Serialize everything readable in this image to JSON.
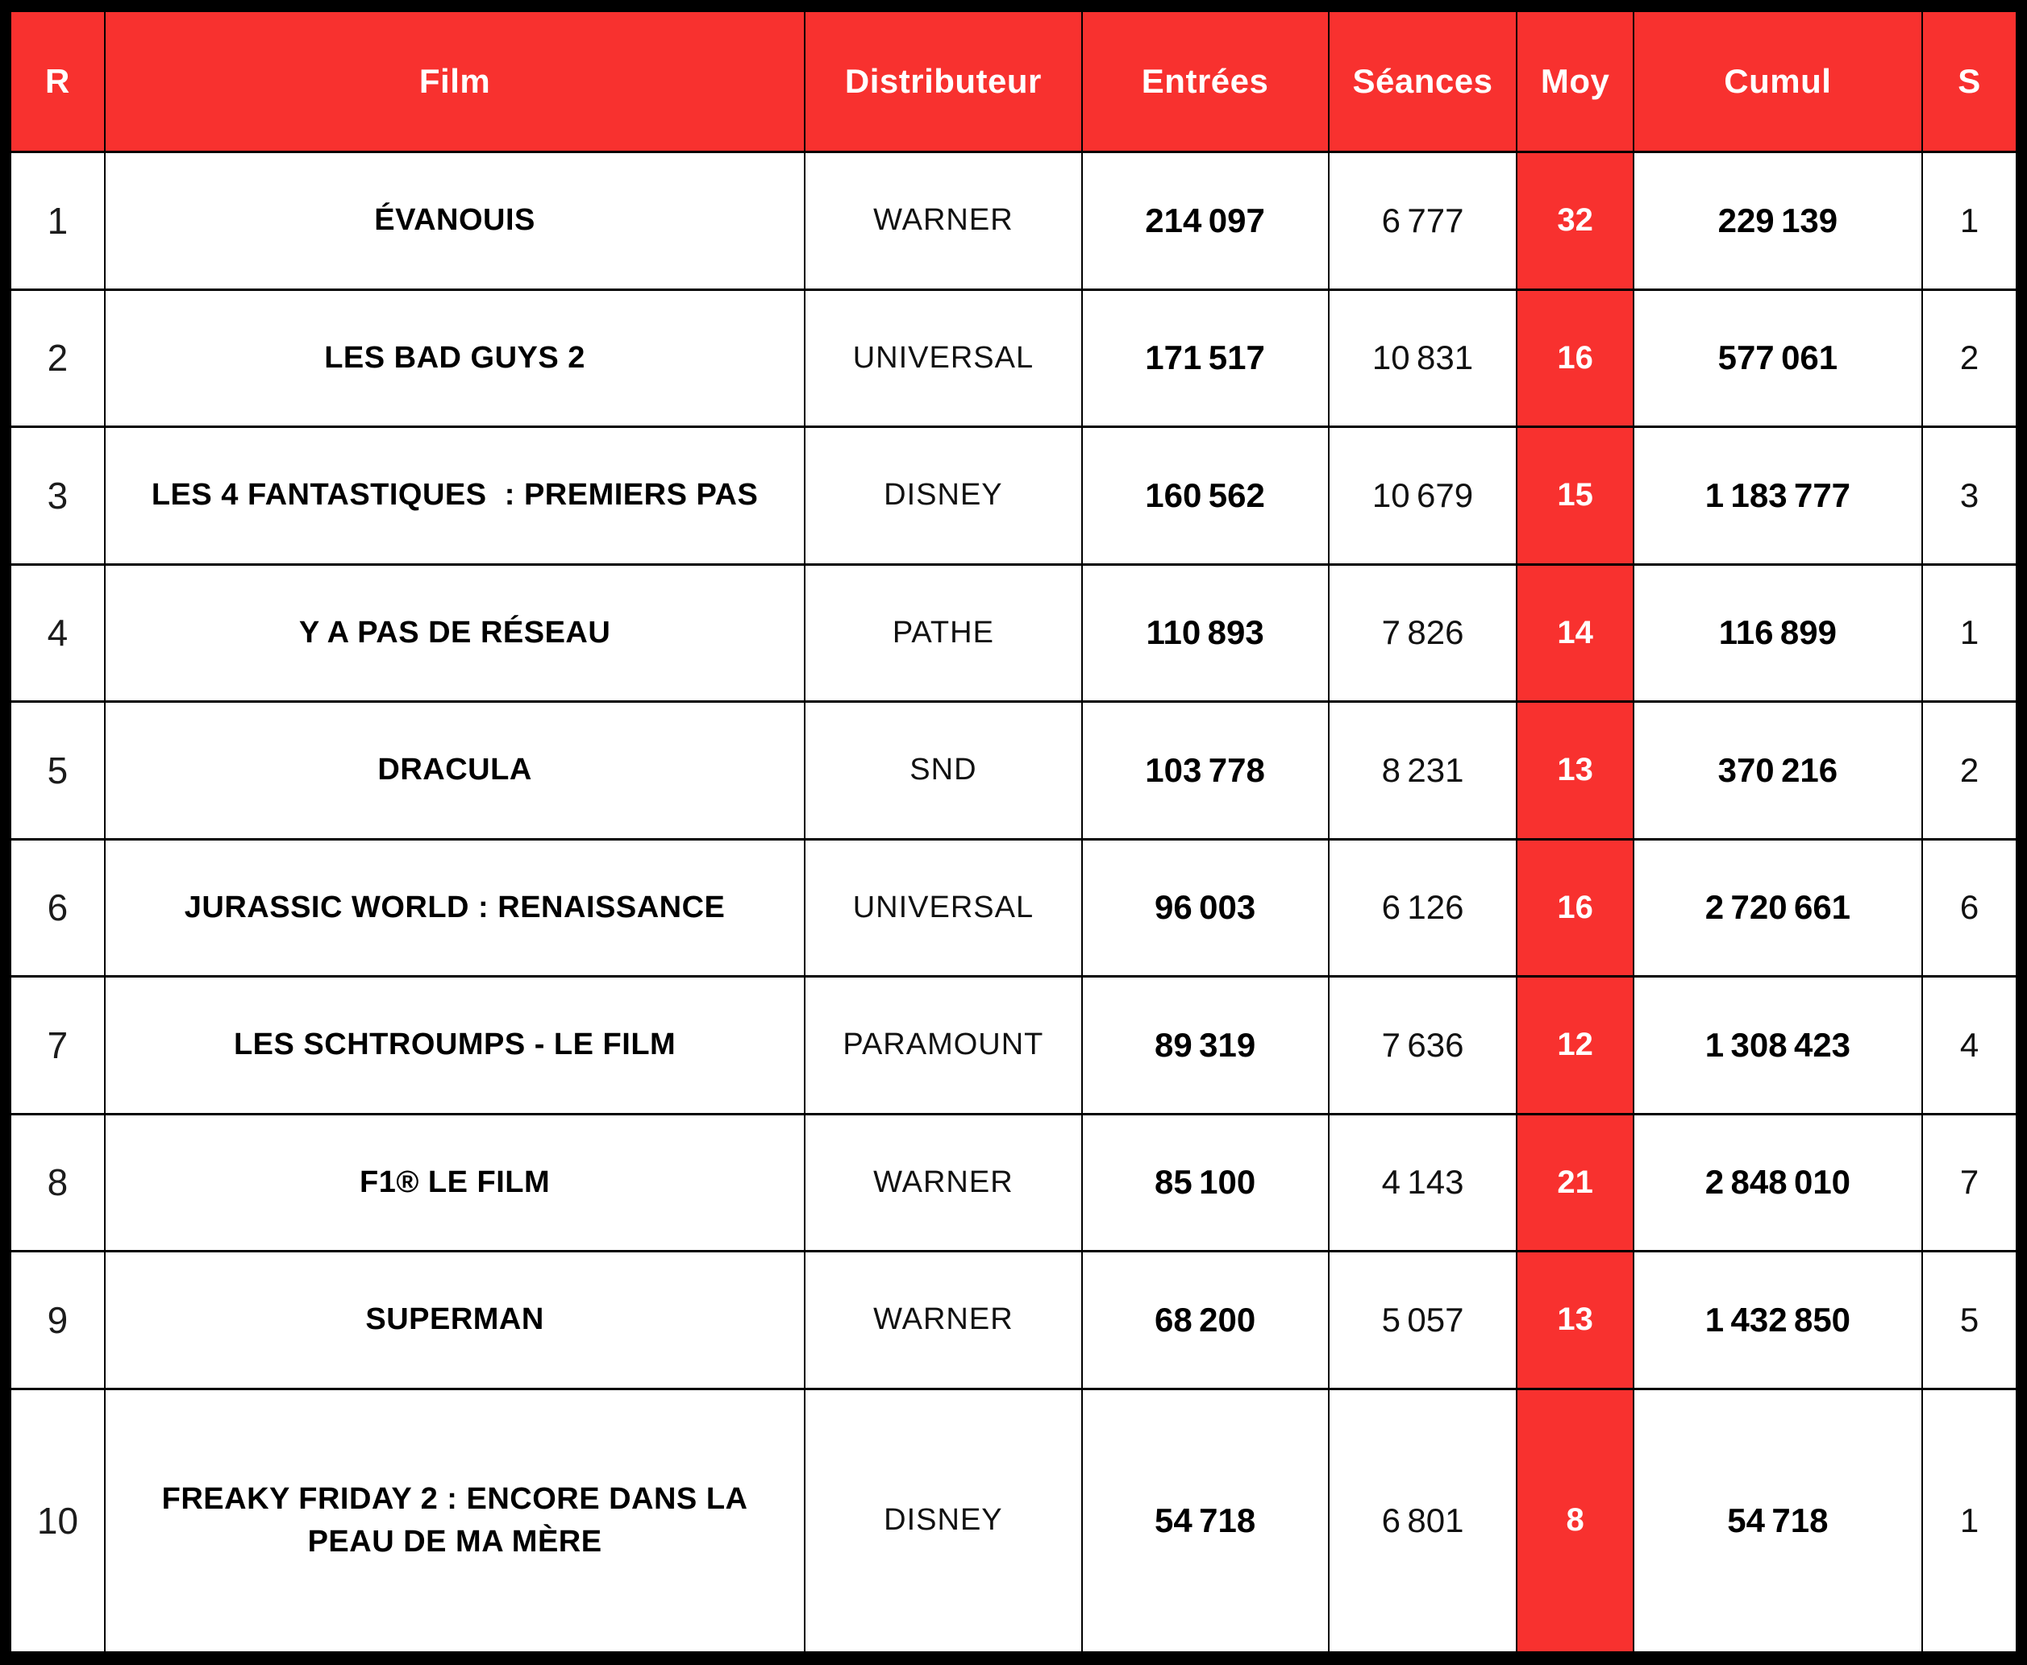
{
  "chart_data": {
    "type": "table",
    "columns": [
      "R",
      "Film",
      "Distributeur",
      "Entrées",
      "Séances",
      "Moy",
      "Cumul",
      "S"
    ],
    "rows": [
      {
        "rank": "1",
        "film": "ÉVANOUIS",
        "distributor": "WARNER",
        "entries": "214 097",
        "screenings": "6 777",
        "average": "32",
        "cumulative": "229 139",
        "weeks": "1"
      },
      {
        "rank": "2",
        "film": "LES BAD GUYS 2",
        "distributor": "UNIVERSAL",
        "entries": "171 517",
        "screenings": "10 831",
        "average": "16",
        "cumulative": "577 061",
        "weeks": "2"
      },
      {
        "rank": "3",
        "film": "LES 4 FANTASTIQUES  : PREMIERS PAS",
        "distributor": "DISNEY",
        "entries": "160 562",
        "screenings": "10 679",
        "average": "15",
        "cumulative": "1 183 777",
        "weeks": "3"
      },
      {
        "rank": "4",
        "film": "Y A PAS DE RÉSEAU",
        "distributor": "PATHE",
        "entries": "110 893",
        "screenings": "7 826",
        "average": "14",
        "cumulative": "116 899",
        "weeks": "1"
      },
      {
        "rank": "5",
        "film": "DRACULA",
        "distributor": "SND",
        "entries": "103 778",
        "screenings": "8 231",
        "average": "13",
        "cumulative": "370 216",
        "weeks": "2"
      },
      {
        "rank": "6",
        "film": "JURASSIC WORLD : RENAISSANCE",
        "distributor": "UNIVERSAL",
        "entries": "96 003",
        "screenings": "6 126",
        "average": "16",
        "cumulative": "2 720 661",
        "weeks": "6"
      },
      {
        "rank": "7",
        "film": "LES SCHTROUMPS - LE FILM",
        "distributor": "PARAMOUNT",
        "entries": "89 319",
        "screenings": "7 636",
        "average": "12",
        "cumulative": "1 308 423",
        "weeks": "4"
      },
      {
        "rank": "8",
        "film": "F1® LE FILM",
        "distributor": "WARNER",
        "entries": "85 100",
        "screenings": "4 143",
        "average": "21",
        "cumulative": "2 848 010",
        "weeks": "7"
      },
      {
        "rank": "9",
        "film": "SUPERMAN",
        "distributor": "WARNER",
        "entries": "68 200",
        "screenings": "5 057",
        "average": "13",
        "cumulative": "1 432 850",
        "weeks": "5"
      },
      {
        "rank": "10",
        "film": "FREAKY FRIDAY 2 : ENCORE DANS LA PEAU DE MA MÈRE",
        "distributor": "DISNEY",
        "entries": "54 718",
        "screenings": "6 801",
        "average": "8",
        "cumulative": "54 718",
        "weeks": "1"
      }
    ]
  },
  "colors": {
    "header_red": "#F8312F",
    "moy_column_red": "#F8312F",
    "grid_black": "#000000",
    "header_text_white": "#FFFFFF",
    "body_text_black": "#000000"
  }
}
